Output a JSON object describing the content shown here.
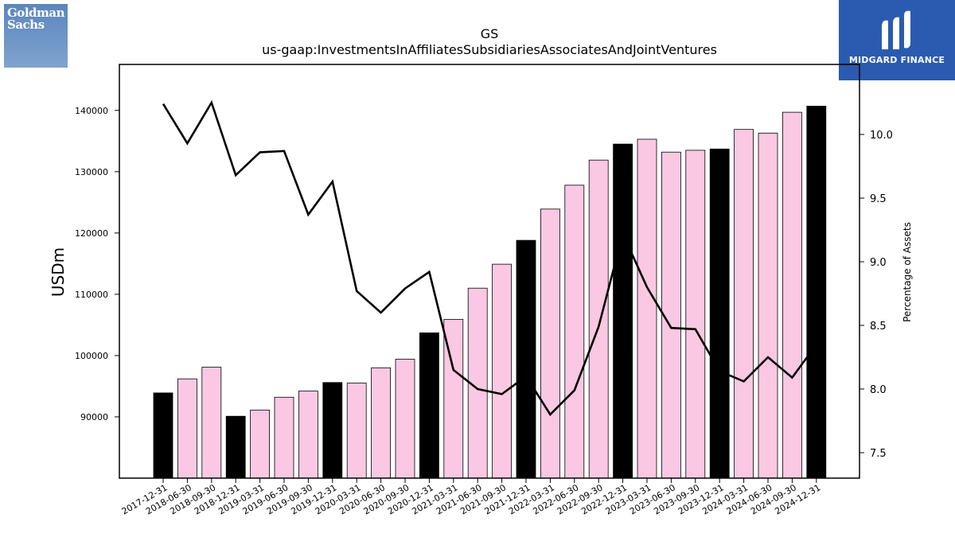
{
  "logos": {
    "left": {
      "text": "Goldman\nSachs",
      "color": "#6b93c6"
    },
    "right": {
      "text": "MIDGARD FINANCE",
      "color": "#2a5bb0"
    }
  },
  "chart_data": {
    "type": "bar",
    "title": "GS",
    "subtitle": "us-gaap:InvestmentsInAffiliatesSubsidiariesAssociatesAndJointVentures",
    "ylabel": "USDm",
    "y2label": "Percentage of Assets",
    "ylim": [
      80000,
      147500
    ],
    "y2lim": [
      7.3,
      10.55
    ],
    "yticks": [
      90000,
      100000,
      110000,
      120000,
      130000,
      140000
    ],
    "y2ticks": [
      7.5,
      8.0,
      8.5,
      9.0,
      9.5,
      10.0
    ],
    "categories": [
      "2017-12-31",
      "2018-06-30",
      "2018-09-30",
      "2018-12-31",
      "2019-03-31",
      "2019-06-30",
      "2019-09-30",
      "2019-12-31",
      "2020-03-31",
      "2020-06-30",
      "2020-09-30",
      "2020-12-31",
      "2021-03-31",
      "2021-06-30",
      "2021-09-30",
      "2021-12-31",
      "2022-03-31",
      "2022-06-30",
      "2022-09-30",
      "2022-12-31",
      "2023-03-31",
      "2023-06-30",
      "2023-09-30",
      "2023-12-31",
      "2024-03-31",
      "2024-06-30",
      "2024-09-30",
      "2024-12-31"
    ],
    "series": [
      {
        "type": "bar",
        "values": [
          93900,
          96200,
          98100,
          90100,
          91100,
          93200,
          94200,
          95600,
          95500,
          98000,
          99400,
          103700,
          105900,
          111000,
          114900,
          118800,
          123900,
          127800,
          131900,
          134500,
          135300,
          133200,
          133500,
          133700,
          136900,
          136300,
          139700,
          140700
        ]
      },
      {
        "type": "line",
        "axis": "y2",
        "values": [
          10.24,
          9.93,
          10.25,
          9.68,
          9.86,
          9.87,
          9.37,
          9.63,
          8.77,
          8.6,
          8.79,
          8.92,
          8.15,
          8.0,
          7.96,
          8.1,
          7.8,
          7.99,
          8.49,
          9.22,
          8.8,
          8.48,
          8.47,
          8.14,
          8.06,
          8.25,
          8.09,
          8.35
        ]
      }
    ],
    "colors": {
      "bar_year_end": "#000000",
      "bar_quarter": "#fbc8e3",
      "bar_edge": "#000000",
      "line": "#000000"
    },
    "grid": false,
    "legend": "none"
  }
}
